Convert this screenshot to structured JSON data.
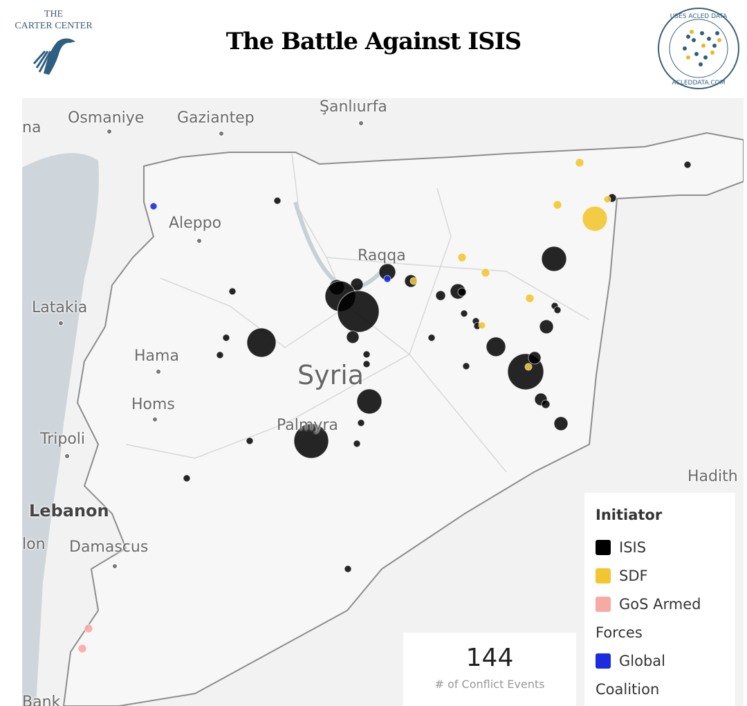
{
  "header": {
    "title": "The Battle Against ISIS",
    "left_logo_text": "THE\nCARTER CENTER",
    "right_logo_text": "USES ACLED DATA · ACLEDDATA.COM"
  },
  "map": {
    "country_label": "Syria",
    "cities": [
      "Osmaniye",
      "Gaziantep",
      "Şanlıurfa",
      "na",
      "Aleppo",
      "Raqqa",
      "Latakia",
      "Hama",
      "Homs",
      "Palmyra",
      "Tripoli",
      "Lebanon",
      "Damascus",
      "lon",
      "Hadith",
      "Bank"
    ]
  },
  "legend": {
    "title": "Initiator",
    "items": [
      {
        "label": "ISIS",
        "color": "#000000"
      },
      {
        "label": "SDF",
        "color": "#f2c531"
      },
      {
        "label": "GoS Armed",
        "color": "#f7a9a4"
      },
      {
        "label": "Forces",
        "color": null
      },
      {
        "label": "Global",
        "color": "#1a2be0"
      },
      {
        "label": "Coalition",
        "color": null
      }
    ]
  },
  "kpi": {
    "value": "144",
    "label": "# of Conflict Events"
  }
}
